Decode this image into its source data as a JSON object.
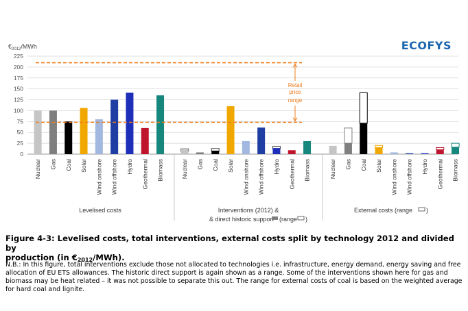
{
  "logo": "ECOFYS",
  "colors": {
    "accent_logo": "#1d67b0",
    "retail_line": "#f07c1a",
    "axis": "#9a9a9a",
    "grid": "#d6d6d6"
  },
  "chart_data": {
    "type": "bar",
    "ylabel": "€2012/MWh",
    "ylabel_main": "€",
    "ylabel_sub": "2012",
    "ylabel_unit": "/MWh",
    "ylim": [
      0,
      225
    ],
    "yticks": [
      0,
      25,
      50,
      75,
      100,
      125,
      150,
      175,
      200,
      225
    ],
    "grid": true,
    "categories": [
      "Nuclear",
      "Gas",
      "Coal",
      "Solar",
      "Wind onshore",
      "Wind offshore",
      "Hydro",
      "Geothermal",
      "Biomass"
    ],
    "colors": {
      "Nuclear": "#c5c5c5",
      "Gas": "#7f7f7f",
      "Coal": "#000000",
      "Solar": "#f0a800",
      "Wind onshore": "#a2b8e0",
      "Wind offshore": "#1f3ea3",
      "Hydro": "#1d2fb8",
      "Geothermal": "#c0142c",
      "Biomass": "#16877c"
    },
    "groups": [
      {
        "label": "Levelised costs",
        "values": [
          100,
          100,
          75,
          106,
          80,
          125,
          141,
          60,
          135
        ]
      },
      {
        "label_line1": "Interventions (2012) &",
        "label_line2": "& direct historic support",
        "range_text": "(range",
        "values": [
          10,
          4,
          8,
          110,
          30,
          61,
          14,
          9,
          30
        ],
        "ranges": [
          [
            6,
            12
          ],
          null,
          [
            6,
            13
          ],
          null,
          null,
          null,
          [
            12,
            18
          ],
          null,
          null
        ]
      },
      {
        "label": "External costs (range",
        "values": [
          19,
          25,
          71,
          15,
          4,
          2,
          2,
          10,
          16
        ],
        "ranges": [
          null,
          [
            25,
            60
          ],
          [
            71,
            141
          ],
          [
            15,
            20
          ],
          null,
          null,
          null,
          [
            10,
            15
          ],
          [
            16,
            25
          ]
        ]
      }
    ],
    "annotations": {
      "retail_price_range": {
        "label_lines": [
          "Retail",
          "price",
          "range"
        ],
        "low": 73,
        "high": 210
      }
    }
  },
  "caption": {
    "line1": "Figure 4-3: Levelised costs, total interventions, external costs split by technology 2012 and divided by",
    "line2_a": "production (in €",
    "line2_sub": "2012",
    "line2_b": "/MWh)."
  },
  "note": "N.B.: In this figure, total interventions exclude those not allocated to technologies i.e. infrastructure, energy demand, energy saving and free allocation of EU ETS allowances. The historic direct support is again shown as a range. Some of the interventions shown here for gas and biomass may be heat related – it was not possible to separate this out. The range for external costs of coal is based on the weighted average for hard coal and lignite."
}
